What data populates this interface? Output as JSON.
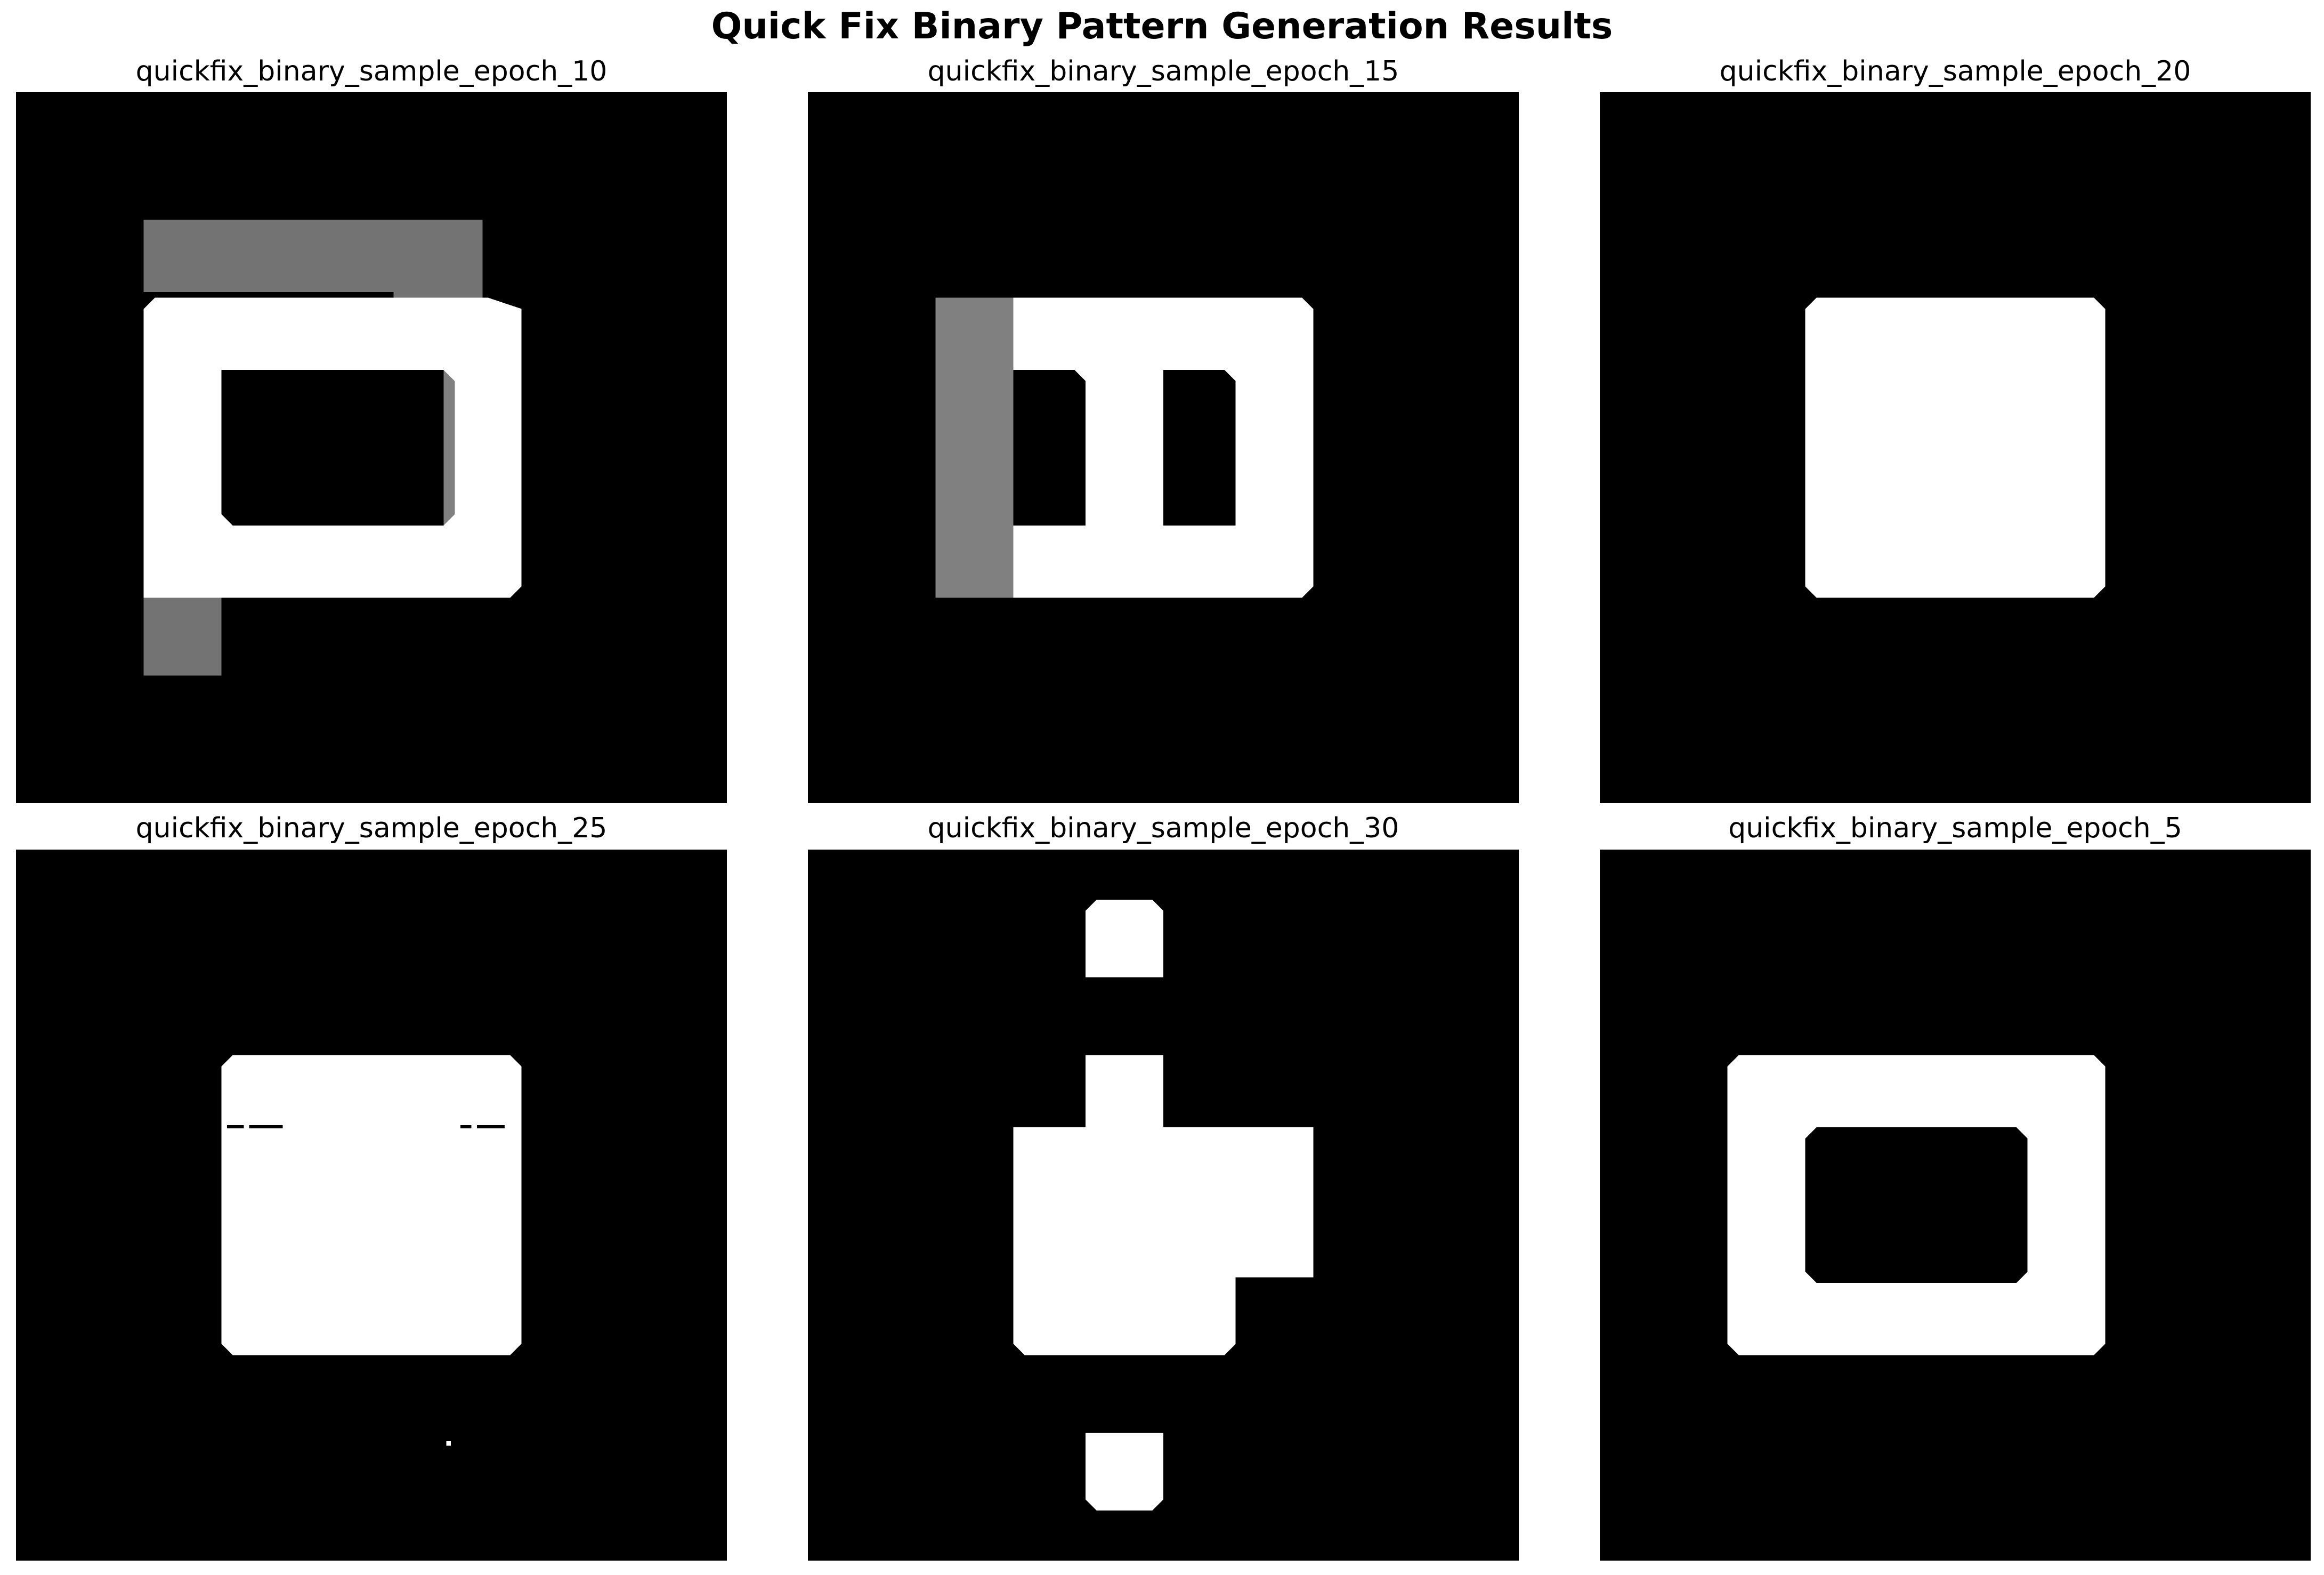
{
  "figure": {
    "title": "Quick Fix Binary Pattern Generation Results"
  },
  "panels": [
    {
      "title": "quickfix_binary_sample_epoch_10"
    },
    {
      "title": "quickfix_binary_sample_epoch_15"
    },
    {
      "title": "quickfix_binary_sample_epoch_20"
    },
    {
      "title": "quickfix_binary_sample_epoch_25"
    },
    {
      "title": "quickfix_binary_sample_epoch_30"
    },
    {
      "title": "quickfix_binary_sample_epoch_5"
    }
  ],
  "colors": {
    "background": "#000000",
    "foreground": "#ffffff"
  }
}
